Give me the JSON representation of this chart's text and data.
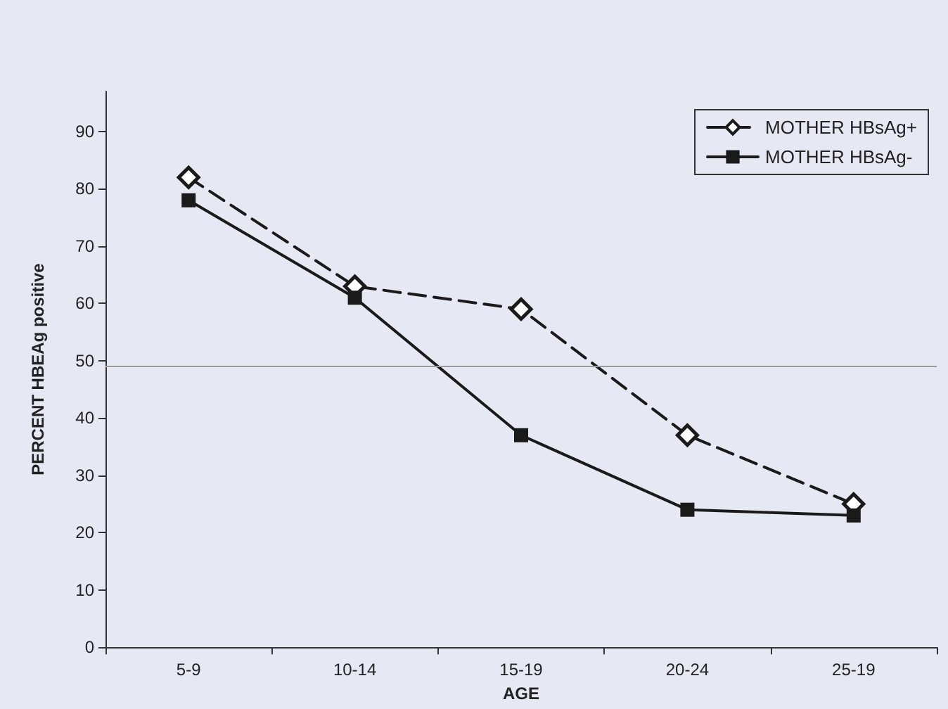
{
  "chart_data": {
    "type": "line",
    "xlabel": "AGE",
    "ylabel": "PERCENT HBEAg positive",
    "categories": [
      "5-9",
      "10-14",
      "15-19",
      "20-24",
      "25-19"
    ],
    "series": [
      {
        "name": "MOTHER HBsAg+",
        "color": "#1a1a1a",
        "values": [
          82,
          63,
          59,
          37,
          25
        ],
        "marker": "diamond",
        "line_style": "dashed"
      },
      {
        "name": "MOTHER HBsAg-",
        "color": "#1a1a1a",
        "values": [
          78,
          61,
          37,
          24,
          23
        ],
        "marker": "square",
        "line_style": "solid"
      }
    ],
    "ylim": [
      0,
      97
    ],
    "yticks": [
      0,
      10,
      20,
      30,
      40,
      50,
      60,
      70,
      80,
      90
    ],
    "ref_lines": [
      {
        "axis": "y",
        "value": 49,
        "color": "#999999"
      }
    ],
    "grid": false,
    "legend": "top right"
  }
}
